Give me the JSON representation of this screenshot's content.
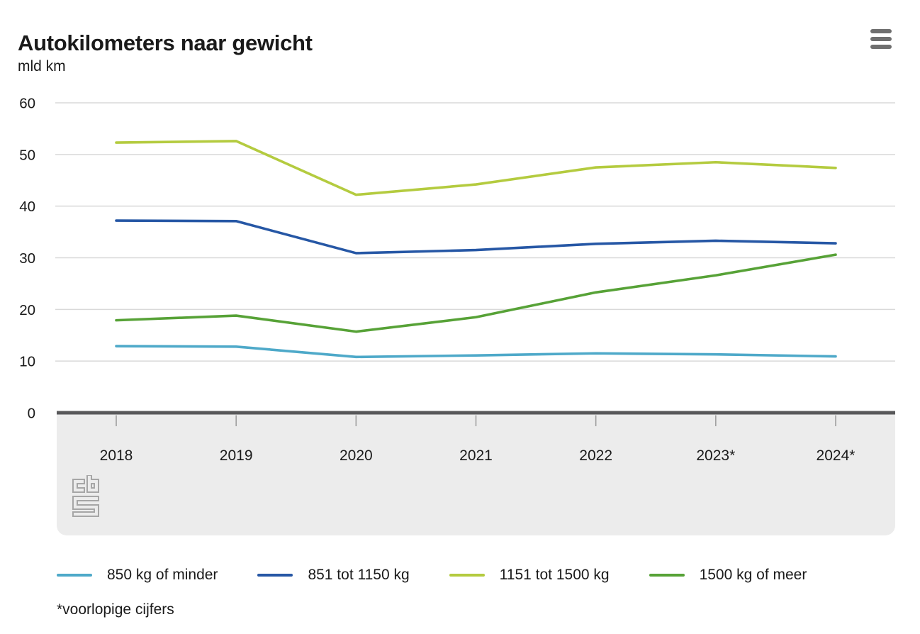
{
  "header": {
    "title": "Autokilometers naar gewicht"
  },
  "chart_data": {
    "type": "line",
    "title": "Autokilometers naar gewicht",
    "unit_label": "mld km",
    "x": [
      "2018",
      "2019",
      "2020",
      "2021",
      "2022",
      "2023*",
      "2024*"
    ],
    "series": [
      {
        "name": "850 kg of minder",
        "color": "#4ea9c9",
        "values": [
          12.9,
          12.8,
          10.8,
          11.1,
          11.5,
          11.3,
          10.9
        ]
      },
      {
        "name": "851 tot 1150 kg",
        "color": "#2657a5",
        "values": [
          37.2,
          37.1,
          30.9,
          31.5,
          32.7,
          33.3,
          32.8
        ]
      },
      {
        "name": "1151 tot 1500 kg",
        "color": "#b4cb3f",
        "values": [
          52.3,
          52.6,
          42.2,
          44.2,
          47.5,
          48.5,
          47.4
        ]
      },
      {
        "name": "1500 kg of meer",
        "color": "#57a237",
        "values": [
          17.9,
          18.8,
          15.7,
          18.5,
          23.3,
          26.6,
          30.6
        ]
      }
    ],
    "y_ticks": [
      0,
      10,
      20,
      30,
      40,
      50,
      60
    ],
    "ylim": [
      0,
      60
    ],
    "grid": "horizontal",
    "legend_position": "bottom"
  },
  "footnote": "*voorlopige cijfers",
  "icons": {
    "menu": "hamburger-icon",
    "logo": "cbs-logo"
  },
  "colors": {
    "gridline": "#d9d9d9",
    "baseline": "#58585a",
    "band": "#ececec",
    "tick": "#9a9a9a",
    "text": "#1a1a1a",
    "icon": "#6f6f6f",
    "logo": "#a6a6a6"
  }
}
